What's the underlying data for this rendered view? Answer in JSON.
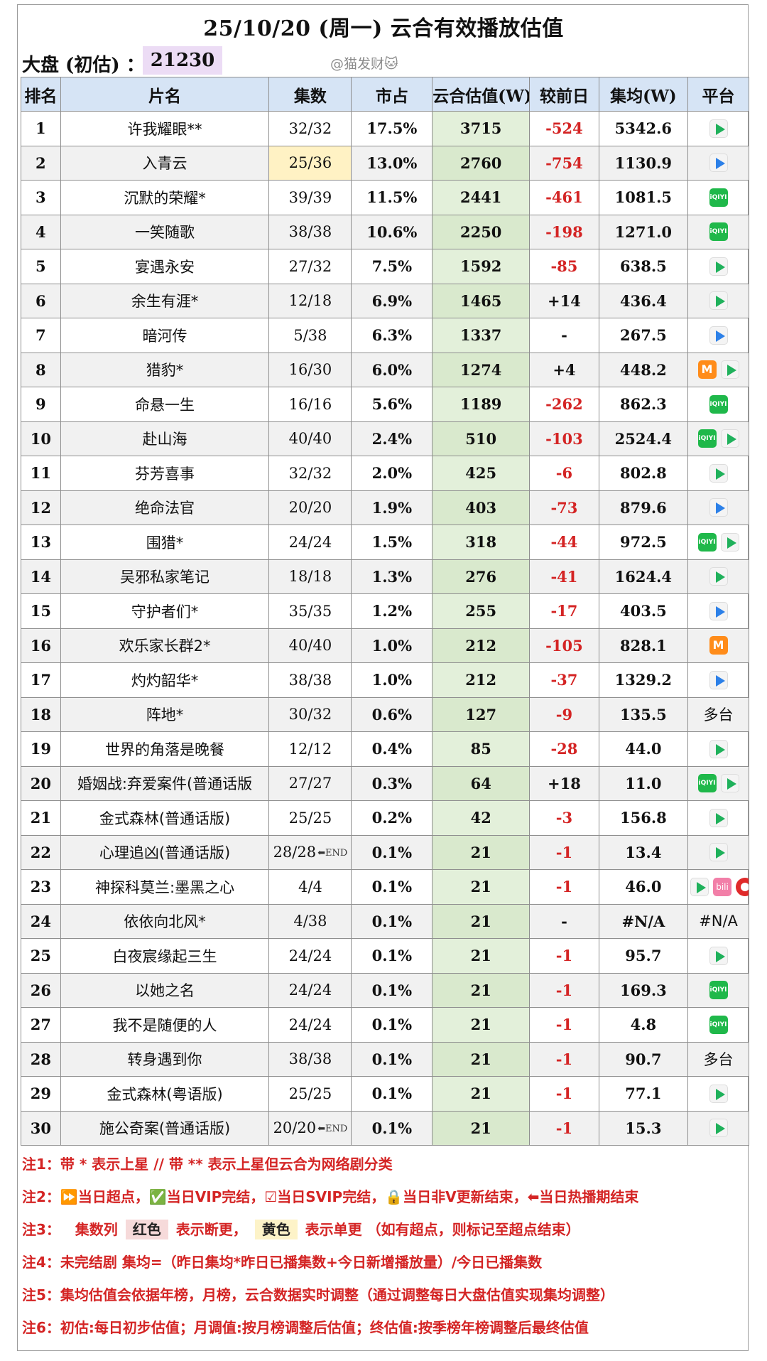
{
  "title": "25/10/20 (周一) 云合有效播放估值",
  "dapan": {
    "label": "大盘 (初估) ：",
    "value": "21230"
  },
  "watermark": "@猫发财🐱",
  "headers": [
    "排名",
    "片名",
    "集数",
    "市占",
    "云合估值(W)",
    "较前日",
    "集均(W)",
    "平台"
  ],
  "rows": [
    {
      "rank": "1",
      "name": "许我耀眼**",
      "ep": "32/32",
      "share": "17.5%",
      "est": "3715",
      "chg": "-524",
      "avg": "5342.6",
      "platforms": [
        "tencent"
      ]
    },
    {
      "rank": "2",
      "name": "入青云",
      "ep": "25/36",
      "share": "13.0%",
      "est": "2760",
      "chg": "-754",
      "avg": "1130.9",
      "platforms": [
        "youku"
      ],
      "ep_highlight": "yellow"
    },
    {
      "rank": "3",
      "name": "沉默的荣耀*",
      "ep": "39/39",
      "share": "11.5%",
      "est": "2441",
      "chg": "-461",
      "avg": "1081.5",
      "platforms": [
        "iqiyi"
      ]
    },
    {
      "rank": "4",
      "name": "一笑随歌",
      "ep": "38/38",
      "share": "10.6%",
      "est": "2250",
      "chg": "-198",
      "avg": "1271.0",
      "platforms": [
        "iqiyi"
      ]
    },
    {
      "rank": "5",
      "name": "宴遇永安",
      "ep": "27/32",
      "share": "7.5%",
      "est": "1592",
      "chg": "-85",
      "avg": "638.5",
      "platforms": [
        "tencent"
      ]
    },
    {
      "rank": "6",
      "name": "余生有涯*",
      "ep": "12/18",
      "share": "6.9%",
      "est": "1465",
      "chg": "+14",
      "avg": "436.4",
      "platforms": [
        "tencent"
      ]
    },
    {
      "rank": "7",
      "name": "暗河传",
      "ep": "5/38",
      "share": "6.3%",
      "est": "1337",
      "chg": "-",
      "avg": "267.5",
      "platforms": [
        "youku"
      ]
    },
    {
      "rank": "8",
      "name": "猎豹*",
      "ep": "16/30",
      "share": "6.0%",
      "est": "1274",
      "chg": "+4",
      "avg": "448.2",
      "platforms": [
        "mango",
        "tencent"
      ]
    },
    {
      "rank": "9",
      "name": "命悬一生",
      "ep": "16/16",
      "share": "5.6%",
      "est": "1189",
      "chg": "-262",
      "avg": "862.3",
      "platforms": [
        "iqiyi"
      ]
    },
    {
      "rank": "10",
      "name": "赴山海",
      "ep": "40/40",
      "share": "2.4%",
      "est": "510",
      "chg": "-103",
      "avg": "2524.4",
      "platforms": [
        "iqiyi",
        "tencent"
      ]
    },
    {
      "rank": "11",
      "name": "芬芳喜事",
      "ep": "32/32",
      "share": "2.0%",
      "est": "425",
      "chg": "-6",
      "avg": "802.8",
      "platforms": [
        "tencent"
      ]
    },
    {
      "rank": "12",
      "name": "绝命法官",
      "ep": "20/20",
      "share": "1.9%",
      "est": "403",
      "chg": "-73",
      "avg": "879.6",
      "platforms": [
        "youku"
      ]
    },
    {
      "rank": "13",
      "name": "围猎*",
      "ep": "24/24",
      "share": "1.5%",
      "est": "318",
      "chg": "-44",
      "avg": "972.5",
      "platforms": [
        "iqiyi",
        "tencent"
      ]
    },
    {
      "rank": "14",
      "name": "吴邪私家笔记",
      "ep": "18/18",
      "share": "1.3%",
      "est": "276",
      "chg": "-41",
      "avg": "1624.4",
      "platforms": [
        "tencent"
      ]
    },
    {
      "rank": "15",
      "name": "守护者们*",
      "ep": "35/35",
      "share": "1.2%",
      "est": "255",
      "chg": "-17",
      "avg": "403.5",
      "platforms": [
        "youku"
      ]
    },
    {
      "rank": "16",
      "name": "欢乐家长群2*",
      "ep": "40/40",
      "share": "1.0%",
      "est": "212",
      "chg": "-105",
      "avg": "828.1",
      "platforms": [
        "mango"
      ]
    },
    {
      "rank": "17",
      "name": "灼灼韶华*",
      "ep": "38/38",
      "share": "1.0%",
      "est": "212",
      "chg": "-37",
      "avg": "1329.2",
      "platforms": [
        "youku"
      ]
    },
    {
      "rank": "18",
      "name": "阵地*",
      "ep": "30/32",
      "share": "0.6%",
      "est": "127",
      "chg": "-9",
      "avg": "135.5",
      "platform_text": "多台"
    },
    {
      "rank": "19",
      "name": "世界的角落是晚餐",
      "ep": "12/12",
      "share": "0.4%",
      "est": "85",
      "chg": "-28",
      "avg": "44.0",
      "platforms": [
        "tencent"
      ]
    },
    {
      "rank": "20",
      "name": "婚姻战:弃爱案件(普通话版",
      "ep": "27/27",
      "share": "0.3%",
      "est": "64",
      "chg": "+18",
      "avg": "11.0",
      "platforms": [
        "iqiyi",
        "tencent"
      ]
    },
    {
      "rank": "21",
      "name": "金式森林(普通话版)",
      "ep": "25/25",
      "share": "0.2%",
      "est": "42",
      "chg": "-3",
      "avg": "156.8",
      "platforms": [
        "tencent"
      ]
    },
    {
      "rank": "22",
      "name": "心理追凶(普通话版)",
      "ep": "28/28",
      "share": "0.1%",
      "est": "21",
      "chg": "-1",
      "avg": "13.4",
      "platforms": [
        "tencent"
      ],
      "ep_end": true
    },
    {
      "rank": "23",
      "name": "神探科莫兰:墨黑之心",
      "ep": "4/4",
      "share": "0.1%",
      "est": "21",
      "chg": "-1",
      "avg": "46.0",
      "platforms": [
        "tencent",
        "bili",
        "red"
      ]
    },
    {
      "rank": "24",
      "name": "依依向北风*",
      "ep": "4/38",
      "share": "0.1%",
      "est": "21",
      "chg": "-",
      "avg": "#N/A",
      "platform_text": "#N/A"
    },
    {
      "rank": "25",
      "name": "白夜宸缘起三生",
      "ep": "24/24",
      "share": "0.1%",
      "est": "21",
      "chg": "-1",
      "avg": "95.7",
      "platforms": [
        "tencent"
      ]
    },
    {
      "rank": "26",
      "name": "以她之名",
      "ep": "24/24",
      "share": "0.1%",
      "est": "21",
      "chg": "-1",
      "avg": "169.3",
      "platforms": [
        "iqiyi"
      ]
    },
    {
      "rank": "27",
      "name": "我不是随便的人",
      "ep": "24/24",
      "share": "0.1%",
      "est": "21",
      "chg": "-1",
      "avg": "4.8",
      "platforms": [
        "iqiyi"
      ]
    },
    {
      "rank": "28",
      "name": "转身遇到你",
      "ep": "38/38",
      "share": "0.1%",
      "est": "21",
      "chg": "-1",
      "avg": "90.7",
      "platform_text": "多台"
    },
    {
      "rank": "29",
      "name": "金式森林(粤语版)",
      "ep": "25/25",
      "share": "0.1%",
      "est": "21",
      "chg": "-1",
      "avg": "77.1",
      "platforms": [
        "tencent"
      ]
    },
    {
      "rank": "30",
      "name": "施公奇案(普通话版)",
      "ep": "20/20",
      "share": "0.1%",
      "est": "21",
      "chg": "-1",
      "avg": "15.3",
      "platforms": [
        "tencent"
      ],
      "ep_end": true
    }
  ],
  "end_icon_text": "⬅END",
  "platform_icon_text": {
    "iqiyi": "iQIYI",
    "mango": "M",
    "bili": "bili"
  },
  "notes": [
    {
      "text": "注1：带 * 表示上星 // 带 ** 表示上星但云合为网络剧分类"
    },
    {
      "text": "注2：⏩当日超点，✅当日VIP完结，☑当日SVIP完结，🔒当日非V更新结束，⬅当日热播期结束"
    },
    {
      "pre": "注3：   集数列 ",
      "red": "红色",
      "mid": " 表示断更， ",
      "yellow": "黄色",
      "post": " 表示单更 （如有超点，则标记至超点结束）"
    },
    {
      "text": "注4：未完结剧 集均=（昨日集均*昨日已播集数+今日新增播放量）/今日已播集数"
    },
    {
      "text": "注5：集均估值会依据年榜，月榜，云合数据实时调整（通过调整每日大盘估值实现集均调整）"
    },
    {
      "text": "注6：初估:每日初步估值；月调值:按月榜调整后估值；终估值:按季榜年榜调整后最终估值"
    }
  ],
  "colors": {
    "header_bg": "#d6e4f5",
    "estimate_bg": "#e3f0da",
    "negative": "#d42424",
    "dapan_bg": "#ecdcf5",
    "yellow_ep": "#fff2c4"
  }
}
